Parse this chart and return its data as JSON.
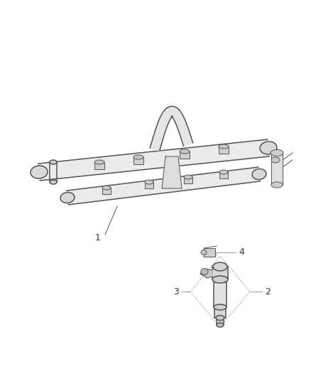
{
  "bg_color": "#ffffff",
  "line_color": "#555555",
  "label_color": "#333333",
  "figsize": [
    4.38,
    5.33
  ],
  "dpi": 100,
  "lw_main": 1.1,
  "lw_detail": 0.7,
  "lw_thin": 0.5
}
